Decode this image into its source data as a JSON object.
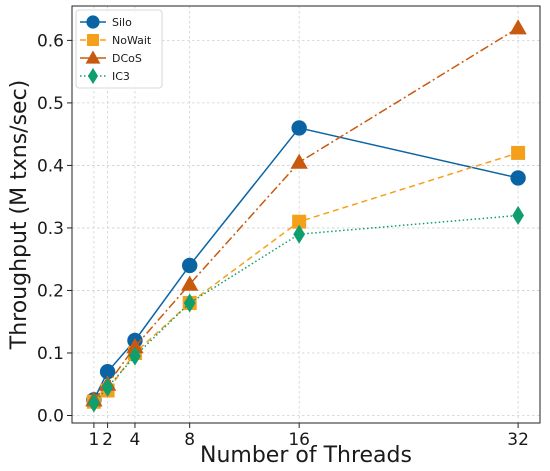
{
  "chart_data": {
    "type": "line",
    "title": "",
    "xlabel": "Number of Threads",
    "ylabel": "Throughput (M txns/sec)",
    "x": [
      1,
      2,
      4,
      8,
      16,
      32
    ],
    "x_ticks": [
      "1",
      "2",
      "4",
      "8",
      "16",
      "32"
    ],
    "xlim": [
      -0.6,
      33.6
    ],
    "ylim": [
      -0.012,
      0.655
    ],
    "y_ticks": [
      "0.0",
      "0.1",
      "0.2",
      "0.3",
      "0.4",
      "0.5",
      "0.6"
    ],
    "grid": true,
    "legend_position": "upper left",
    "series": [
      {
        "name": "Silo",
        "values": [
          0.025,
          0.07,
          0.12,
          0.24,
          0.46,
          0.38
        ],
        "color": "#0a64a4",
        "marker": "circle",
        "line_style": "solid"
      },
      {
        "name": "NoWait",
        "values": [
          0.022,
          0.04,
          0.1,
          0.18,
          0.31,
          0.42
        ],
        "color": "#f5a01a",
        "marker": "square",
        "line_style": "dashed"
      },
      {
        "name": "DCoS",
        "values": [
          0.025,
          0.05,
          0.11,
          0.21,
          0.405,
          0.62
        ],
        "color": "#c85a10",
        "marker": "triangle",
        "line_style": "dashdot"
      },
      {
        "name": "IC3",
        "values": [
          0.02,
          0.045,
          0.095,
          0.18,
          0.29,
          0.32
        ],
        "color": "#0f9f6e",
        "marker": "diamond",
        "line_style": "dotted"
      }
    ]
  }
}
